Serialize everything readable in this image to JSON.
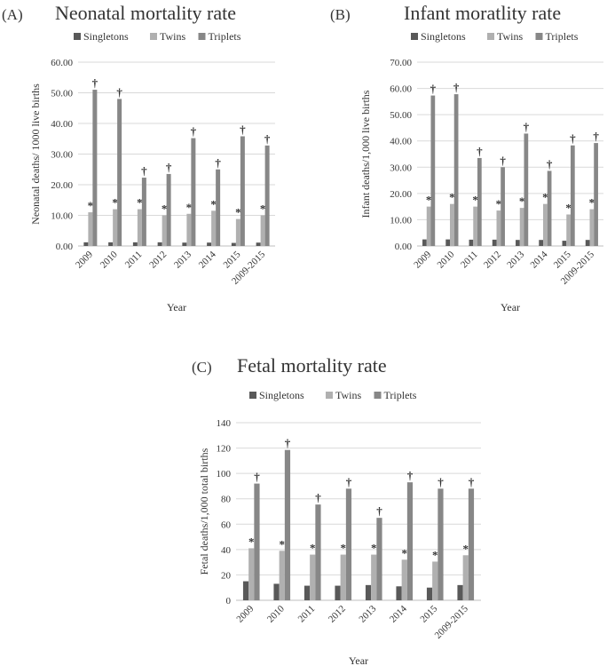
{
  "series_colors": {
    "Singletons": "#595959",
    "Twins": "#b0b0b0",
    "Triplets": "#878787"
  },
  "chart_data": [
    {
      "type": "bar",
      "panel": "(A)",
      "title": "Neonatal mortality rate",
      "xlabel": "Year",
      "ylabel": "Neonatal deaths/ 1000 live births",
      "ylim": [
        0,
        60
      ],
      "ytick_step": 10,
      "ytick_decimals": 2,
      "legend_position": "top",
      "categories": [
        "2009",
        "2010",
        "2011",
        "2012",
        "2013",
        "2014",
        "2015",
        "2009-2015"
      ],
      "series": [
        {
          "name": "Singletons",
          "values": [
            1.2,
            1.2,
            1.2,
            1.2,
            1.1,
            1.1,
            1.0,
            1.1
          ]
        },
        {
          "name": "Twins",
          "values": [
            11.0,
            12.0,
            12.0,
            10.0,
            10.5,
            11.5,
            8.8,
            10.0
          ]
        },
        {
          "name": "Triplets",
          "values": [
            51.0,
            48.0,
            22.3,
            23.5,
            35.2,
            25.0,
            35.8,
            32.8
          ]
        }
      ],
      "markers": [
        {
          "series": "Twins",
          "symbol": "*"
        },
        {
          "series": "Triplets",
          "symbol": "†"
        }
      ]
    },
    {
      "type": "bar",
      "panel": "(B)",
      "title": "Infant moratlity rate",
      "xlabel": "Year",
      "ylabel": "Infant deaths/1,000 live births",
      "ylim": [
        0,
        70
      ],
      "ytick_step": 10,
      "ytick_decimals": 2,
      "legend_position": "top",
      "categories": [
        "2009",
        "2010",
        "2011",
        "2012",
        "2013",
        "2014",
        "2015",
        "2009-2015"
      ],
      "series": [
        {
          "name": "Singletons",
          "values": [
            2.5,
            2.5,
            2.4,
            2.4,
            2.3,
            2.3,
            2.0,
            2.3
          ]
        },
        {
          "name": "Twins",
          "values": [
            15.0,
            16.0,
            15.0,
            13.5,
            14.5,
            16.0,
            12.0,
            14.0
          ]
        },
        {
          "name": "Triplets",
          "values": [
            57.3,
            57.8,
            33.5,
            30.0,
            42.8,
            28.6,
            38.3,
            39.2
          ]
        }
      ],
      "markers": [
        {
          "series": "Twins",
          "symbol": "*"
        },
        {
          "series": "Triplets",
          "symbol": "†"
        }
      ]
    },
    {
      "type": "bar",
      "panel": "(C)",
      "title": "Fetal mortality rate",
      "xlabel": "Year",
      "ylabel": "Fetal deaths/1,000 total births",
      "ylim": [
        0,
        140
      ],
      "ytick_step": 20,
      "ytick_decimals": 0,
      "legend_position": "top",
      "categories": [
        "2009",
        "2010",
        "2011",
        "2012",
        "2013",
        "2014",
        "2015",
        "2009-2015"
      ],
      "series": [
        {
          "name": "Singletons",
          "values": [
            15.0,
            13.0,
            11.5,
            11.5,
            12.0,
            11.0,
            10.0,
            12.0
          ]
        },
        {
          "name": "Twins",
          "values": [
            41.0,
            39.0,
            36.0,
            36.0,
            36.0,
            32.0,
            30.5,
            35.5
          ]
        },
        {
          "name": "Triplets",
          "values": [
            92.0,
            118.5,
            75.5,
            88.0,
            65.0,
            93.0,
            88.0,
            88.0
          ]
        }
      ],
      "markers": [
        {
          "series": "Twins",
          "symbol": "*"
        },
        {
          "series": "Triplets",
          "symbol": "†"
        }
      ]
    }
  ]
}
